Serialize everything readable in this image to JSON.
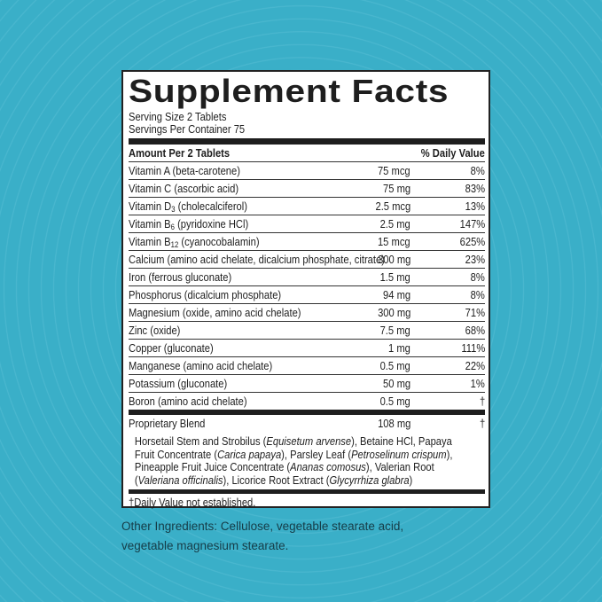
{
  "colors": {
    "background": "#3aafc8",
    "label_bg": "#ffffff",
    "text": "#1e1e1e",
    "other_text": "#163c47"
  },
  "label": {
    "title": "Supplement Facts",
    "serving_size": "Serving Size 2 Tablets",
    "servings_per_container": "Servings Per Container 75",
    "header": {
      "amount": "Amount Per 2 Tablets",
      "dv": "% Daily Value"
    },
    "rows": [
      {
        "name": "Vitamin A (beta-carotene)",
        "amount": "75 mcg",
        "dv": "8%"
      },
      {
        "name": "Vitamin C (ascorbic acid)",
        "amount": "75 mg",
        "dv": "83%"
      },
      {
        "name": "Vitamin D",
        "sub": "3",
        "name_rest": " (cholecalciferol)",
        "amount": "2.5 mcg",
        "dv": "13%"
      },
      {
        "name": "Vitamin B",
        "sub": "6",
        "name_rest": " (pyridoxine HCl)",
        "amount": "2.5 mg",
        "dv": "147%"
      },
      {
        "name": "Vitamin B",
        "sub": "12",
        "name_rest": " (cyanocobalamin)",
        "amount": "15 mcg",
        "dv": "625%"
      },
      {
        "name": "Calcium (amino acid chelate, dicalcium phosphate, citrate)",
        "amount": "300 mg",
        "dv": "23%"
      },
      {
        "name": "Iron (ferrous gluconate)",
        "amount": "1.5 mg",
        "dv": "8%"
      },
      {
        "name": "Phosphorus (dicalcium phosphate)",
        "amount": "94 mg",
        "dv": "8%"
      },
      {
        "name": "Magnesium (oxide, amino acid chelate)",
        "amount": "300 mg",
        "dv": "71%"
      },
      {
        "name": "Zinc (oxide)",
        "amount": "7.5 mg",
        "dv": "68%"
      },
      {
        "name": "Copper (gluconate)",
        "amount": "1 mg",
        "dv": "111%"
      },
      {
        "name": "Manganese (amino acid chelate)",
        "amount": "0.5 mg",
        "dv": "22%"
      },
      {
        "name": "Potassium (gluconate)",
        "amount": "50 mg",
        "dv": "1%"
      },
      {
        "name": "Boron (amino acid chelate)",
        "amount": "0.5 mg",
        "dv": "†"
      }
    ],
    "blend": {
      "name": "Proprietary Blend",
      "amount": "108 mg",
      "dv": "†",
      "ingredients": [
        {
          "text": "Horsetail Stem and Strobilus (",
          "italic": false
        },
        {
          "text": "Equisetum arvense",
          "italic": true
        },
        {
          "text": "), Betaine HCl, Papaya Fruit Concentrate (",
          "italic": false
        },
        {
          "text": "Carica papaya",
          "italic": true
        },
        {
          "text": "), Parsley Leaf (",
          "italic": false
        },
        {
          "text": "Petroselinum crispum",
          "italic": true
        },
        {
          "text": "), Pineapple Fruit Juice Concentrate (",
          "italic": false
        },
        {
          "text": "Ananas comosus",
          "italic": true
        },
        {
          "text": "), Valerian Root (",
          "italic": false
        },
        {
          "text": "Valeriana officinalis",
          "italic": true
        },
        {
          "text": "), Licorice Root Extract (",
          "italic": false
        },
        {
          "text": "Glycyrrhiza glabra",
          "italic": true
        },
        {
          "text": ")",
          "italic": false
        }
      ]
    },
    "footnote": "†Daily Value not established."
  },
  "other_ingredients": "Other Ingredients: Cellulose, vegetable stearate acid, vegetable magnesium stearate."
}
